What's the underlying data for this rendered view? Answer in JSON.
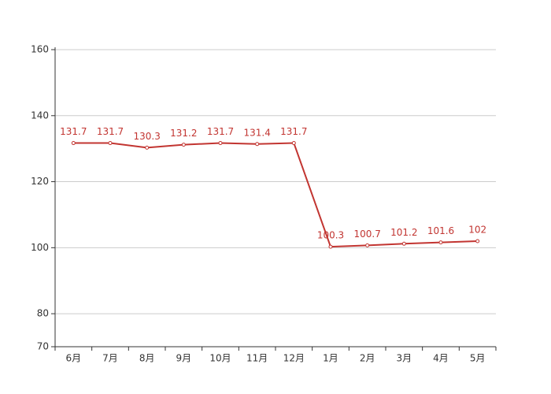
{
  "chart_data": {
    "type": "line",
    "categories": [
      "6月",
      "7月",
      "8月",
      "9月",
      "10月",
      "11月",
      "12月",
      "1月",
      "2月",
      "3月",
      "4月",
      "5月"
    ],
    "series": [
      {
        "color": "#c23531",
        "values": [
          131.7,
          131.7,
          130.3,
          131.2,
          131.7,
          131.4,
          131.7,
          100.3,
          100.7,
          101.2,
          101.6,
          102
        ]
      }
    ],
    "ylim": [
      70,
      160
    ],
    "yticks": [
      70,
      80,
      100,
      120,
      140,
      160
    ],
    "grid": true
  }
}
